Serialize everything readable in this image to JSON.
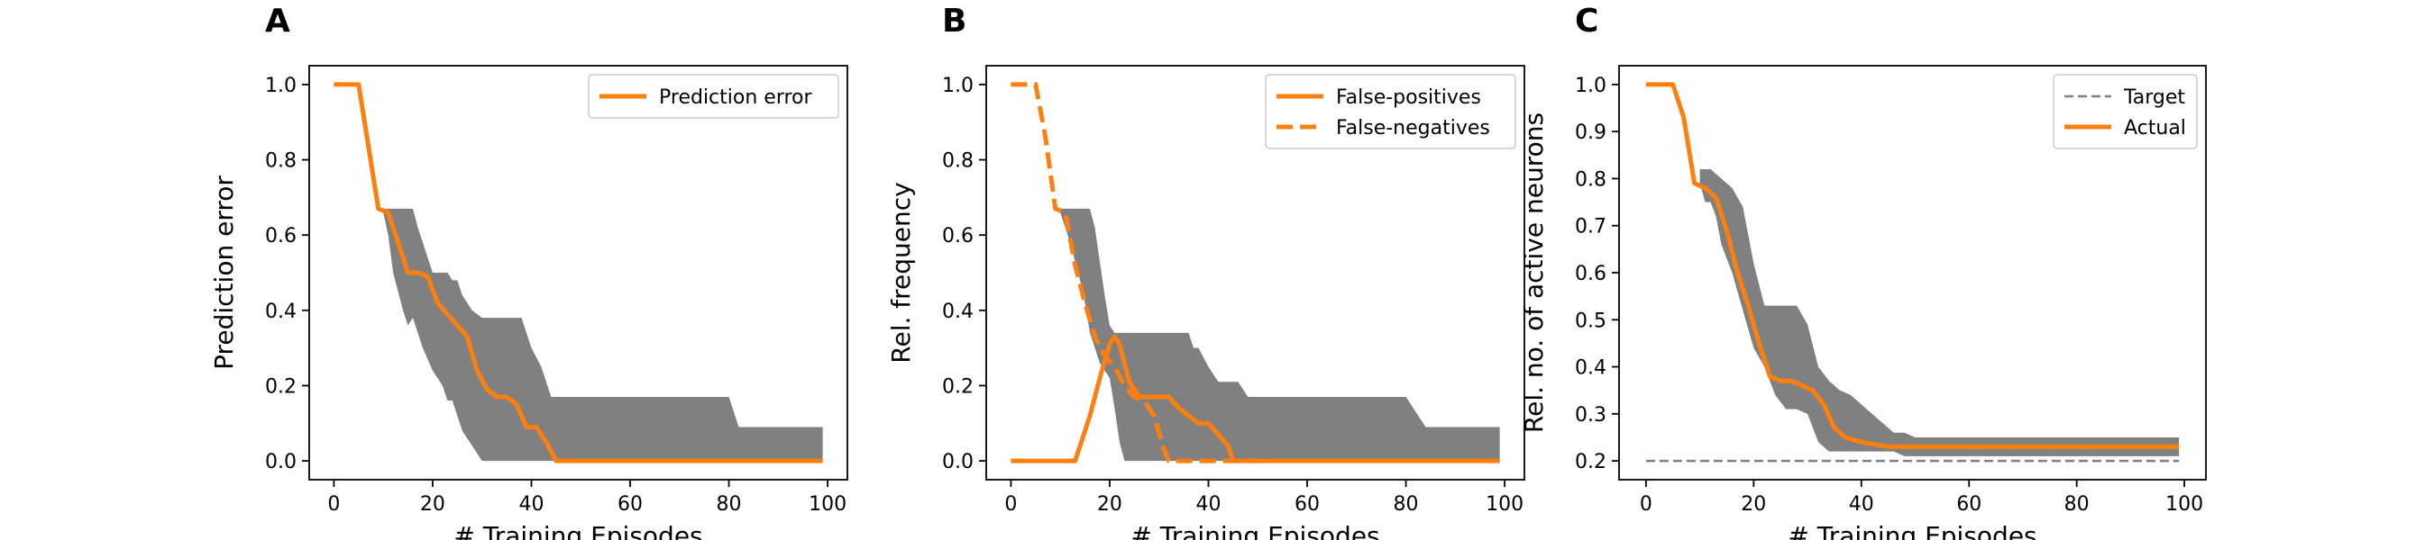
{
  "colors": {
    "actual": "#ff7f0e",
    "band": "#808080",
    "target": "#7f7f7f",
    "frame": "#000000"
  },
  "chart_data": [
    {
      "panel": "A",
      "type": "line",
      "xlabel": "# Training Episodes",
      "ylabel": "Prediction error",
      "xlim": [
        -5,
        104
      ],
      "ylim": [
        -0.05,
        1.05
      ],
      "xticks": [
        0,
        20,
        40,
        60,
        80,
        100
      ],
      "yticks": [
        0.0,
        0.2,
        0.4,
        0.6,
        0.8,
        1.0
      ],
      "ytick_labels": [
        "0.0",
        "0.2",
        "0.4",
        "0.6",
        "0.8",
        "1.0"
      ],
      "legend": "top-right",
      "band": {
        "x": [
          10,
          11,
          12,
          14,
          15,
          16,
          17,
          18,
          20,
          22,
          23,
          24,
          25,
          26,
          28,
          30,
          32,
          34,
          36,
          38,
          40,
          42,
          44,
          46,
          48,
          50,
          60,
          70,
          80,
          82,
          90,
          99
        ],
        "lower": [
          0.66,
          0.6,
          0.5,
          0.4,
          0.36,
          0.38,
          0.34,
          0.3,
          0.24,
          0.2,
          0.16,
          0.16,
          0.12,
          0.08,
          0.04,
          0.0,
          0.0,
          0.0,
          0.0,
          0.0,
          0.0,
          0.0,
          0.0,
          0.0,
          0.0,
          0.0,
          0.0,
          0.0,
          0.0,
          0.0,
          0.0,
          0.0
        ],
        "upper": [
          0.67,
          0.67,
          0.67,
          0.67,
          0.67,
          0.67,
          0.62,
          0.58,
          0.5,
          0.5,
          0.5,
          0.48,
          0.48,
          0.44,
          0.4,
          0.38,
          0.38,
          0.38,
          0.38,
          0.38,
          0.3,
          0.25,
          0.17,
          0.17,
          0.17,
          0.17,
          0.17,
          0.17,
          0.17,
          0.09,
          0.09,
          0.09
        ]
      },
      "series": [
        {
          "name": "Prediction error",
          "style": "solid",
          "x": [
            0,
            5,
            9,
            11,
            13,
            15,
            17,
            19,
            21,
            23,
            25,
            27,
            29,
            31,
            33,
            35,
            37,
            39,
            41,
            43,
            45,
            47,
            50,
            60,
            70,
            80,
            90,
            99
          ],
          "y": [
            1.0,
            1.0,
            0.67,
            0.66,
            0.58,
            0.5,
            0.5,
            0.49,
            0.42,
            0.39,
            0.36,
            0.33,
            0.24,
            0.19,
            0.17,
            0.17,
            0.15,
            0.09,
            0.09,
            0.05,
            0.0,
            0.0,
            0.0,
            0.0,
            0.0,
            0.0,
            0.0,
            0.0
          ]
        }
      ]
    },
    {
      "panel": "B",
      "type": "line",
      "xlabel": "# Training Episodes",
      "ylabel": "Rel. frequency",
      "xlim": [
        -5,
        104
      ],
      "ylim": [
        -0.05,
        1.05
      ],
      "xticks": [
        0,
        20,
        40,
        60,
        80,
        100
      ],
      "yticks": [
        0.0,
        0.2,
        0.4,
        0.6,
        0.8,
        1.0
      ],
      "ytick_labels": [
        "0.0",
        "0.2",
        "0.4",
        "0.6",
        "0.8",
        "1.0"
      ],
      "legend": "top-right",
      "band": {
        "x": [
          10,
          11,
          12,
          14,
          15,
          16,
          17,
          18,
          19,
          20,
          21,
          22,
          23,
          24,
          26,
          28,
          30,
          32,
          34,
          36,
          37,
          38,
          40,
          42,
          44,
          46,
          48,
          50,
          60,
          70,
          80,
          84,
          90,
          99
        ],
        "lower": [
          0.66,
          0.62,
          0.58,
          0.48,
          0.42,
          0.34,
          0.3,
          0.26,
          0.24,
          0.22,
          0.14,
          0.05,
          0.0,
          0.0,
          0.0,
          0.0,
          0.0,
          0.0,
          0.0,
          0.0,
          0.0,
          0.0,
          0.0,
          0.0,
          0.0,
          0.0,
          0.0,
          0.0,
          0.0,
          0.0,
          0.0,
          0.0,
          0.0,
          0.0
        ],
        "upper": [
          0.67,
          0.67,
          0.67,
          0.67,
          0.67,
          0.67,
          0.62,
          0.53,
          0.44,
          0.36,
          0.34,
          0.34,
          0.34,
          0.34,
          0.34,
          0.34,
          0.34,
          0.34,
          0.34,
          0.34,
          0.3,
          0.3,
          0.25,
          0.21,
          0.21,
          0.21,
          0.17,
          0.17,
          0.17,
          0.17,
          0.17,
          0.09,
          0.09,
          0.09
        ]
      },
      "series": [
        {
          "name": "False-positives",
          "style": "solid",
          "x": [
            0,
            13,
            14,
            16,
            18,
            20,
            21,
            22,
            24,
            26,
            28,
            30,
            32,
            34,
            36,
            38,
            40,
            42,
            44,
            45,
            50,
            60,
            70,
            80,
            90,
            99
          ],
          "y": [
            0.0,
            0.0,
            0.04,
            0.12,
            0.22,
            0.31,
            0.33,
            0.31,
            0.21,
            0.17,
            0.17,
            0.17,
            0.17,
            0.14,
            0.12,
            0.1,
            0.1,
            0.07,
            0.04,
            0.0,
            0.0,
            0.0,
            0.0,
            0.0,
            0.0,
            0.0
          ]
        },
        {
          "name": "False-negatives",
          "style": "dashed",
          "x": [
            0,
            5,
            7,
            9,
            11,
            13,
            15,
            17,
            19,
            21,
            23,
            25,
            27,
            29,
            31,
            32,
            40,
            50
          ],
          "y": [
            1.0,
            1.0,
            0.86,
            0.67,
            0.66,
            0.52,
            0.42,
            0.33,
            0.28,
            0.25,
            0.2,
            0.17,
            0.16,
            0.12,
            0.03,
            0.0,
            0.0,
            0.0
          ]
        }
      ]
    },
    {
      "panel": "C",
      "type": "line",
      "xlabel": "# Training Episodes",
      "ylabel": "Rel. no. of active neurons",
      "xlim": [
        -5,
        104
      ],
      "ylim": [
        0.16,
        1.04
      ],
      "xticks": [
        0,
        20,
        40,
        60,
        80,
        100
      ],
      "yticks": [
        0.2,
        0.3,
        0.4,
        0.5,
        0.6,
        0.7,
        0.8,
        0.9,
        1.0
      ],
      "ytick_labels": [
        "0.2",
        "0.3",
        "0.4",
        "0.5",
        "0.6",
        "0.7",
        "0.8",
        "0.9",
        "1.0"
      ],
      "legend": "top-right",
      "band": {
        "x": [
          10,
          11,
          12,
          13,
          14,
          16,
          18,
          20,
          22,
          24,
          26,
          28,
          30,
          32,
          34,
          36,
          38,
          40,
          42,
          44,
          46,
          48,
          50,
          60,
          70,
          80,
          90,
          99
        ],
        "lower": [
          0.79,
          0.75,
          0.75,
          0.72,
          0.66,
          0.6,
          0.52,
          0.44,
          0.4,
          0.34,
          0.31,
          0.31,
          0.3,
          0.24,
          0.22,
          0.22,
          0.22,
          0.22,
          0.22,
          0.22,
          0.22,
          0.21,
          0.21,
          0.21,
          0.21,
          0.21,
          0.21,
          0.21
        ],
        "upper": [
          0.82,
          0.82,
          0.82,
          0.81,
          0.8,
          0.78,
          0.74,
          0.62,
          0.53,
          0.53,
          0.53,
          0.53,
          0.49,
          0.4,
          0.37,
          0.35,
          0.34,
          0.32,
          0.3,
          0.28,
          0.26,
          0.26,
          0.25,
          0.25,
          0.25,
          0.25,
          0.25,
          0.25
        ]
      },
      "series": [
        {
          "name": "Target",
          "style": "dashed-thin",
          "x": [
            0,
            99
          ],
          "y": [
            0.2,
            0.2
          ]
        },
        {
          "name": "Actual",
          "style": "solid",
          "x": [
            0,
            5,
            7,
            9,
            11,
            13,
            15,
            17,
            19,
            21,
            23,
            25,
            27,
            29,
            31,
            33,
            35,
            37,
            40,
            45,
            50,
            60,
            70,
            80,
            90,
            99
          ],
          "y": [
            1.0,
            1.0,
            0.93,
            0.79,
            0.78,
            0.76,
            0.69,
            0.6,
            0.53,
            0.45,
            0.38,
            0.37,
            0.37,
            0.36,
            0.35,
            0.32,
            0.27,
            0.25,
            0.24,
            0.23,
            0.23,
            0.23,
            0.23,
            0.23,
            0.23,
            0.23
          ]
        }
      ]
    }
  ]
}
